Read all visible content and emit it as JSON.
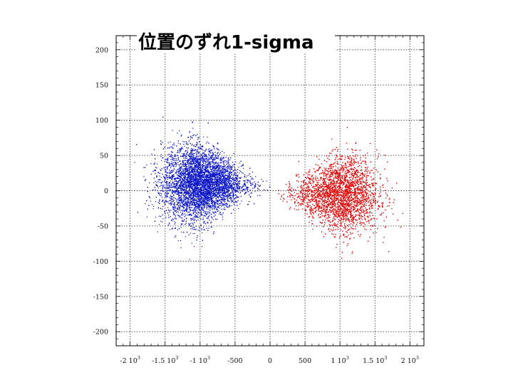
{
  "chart_data": {
    "type": "scatter",
    "title": "位置のずれ1-sigma",
    "xlim": [
      -2200,
      2200
    ],
    "ylim": [
      -220,
      220
    ],
    "grid": true,
    "x_ticks": [
      {
        "value": -2000,
        "mantissa": "-2 10",
        "exp": "3"
      },
      {
        "value": -1500,
        "mantissa": "-1.5 10",
        "exp": "3"
      },
      {
        "value": -1000,
        "mantissa": "-1 10",
        "exp": "3"
      },
      {
        "value": -500,
        "mantissa": "-500",
        "exp": ""
      },
      {
        "value": 0,
        "mantissa": "0",
        "exp": ""
      },
      {
        "value": 500,
        "mantissa": "500",
        "exp": ""
      },
      {
        "value": 1000,
        "mantissa": "1 10",
        "exp": "3"
      },
      {
        "value": 1500,
        "mantissa": "1.5 10",
        "exp": "3"
      },
      {
        "value": 2000,
        "mantissa": "2 10",
        "exp": "3"
      }
    ],
    "y_ticks": [
      {
        "value": 200,
        "label": "200"
      },
      {
        "value": 150,
        "label": "150"
      },
      {
        "value": 100,
        "label": "100"
      },
      {
        "value": 50,
        "label": "50"
      },
      {
        "value": 0,
        "label": "0"
      },
      {
        "value": -50,
        "label": "-50"
      },
      {
        "value": -100,
        "label": "-100"
      },
      {
        "value": -150,
        "label": "-150"
      },
      {
        "value": -200,
        "label": "-200"
      }
    ],
    "series": [
      {
        "color": "#0a14c8",
        "center": [
          -1000,
          10
        ],
        "x_range": [
          -1950,
          0
        ],
        "y_spread": 80,
        "points": 9000
      },
      {
        "color": "#e01010",
        "center": [
          1000,
          -5
        ],
        "x_range": [
          100,
          2000
        ],
        "y_spread": 80,
        "points": 9000
      }
    ]
  }
}
